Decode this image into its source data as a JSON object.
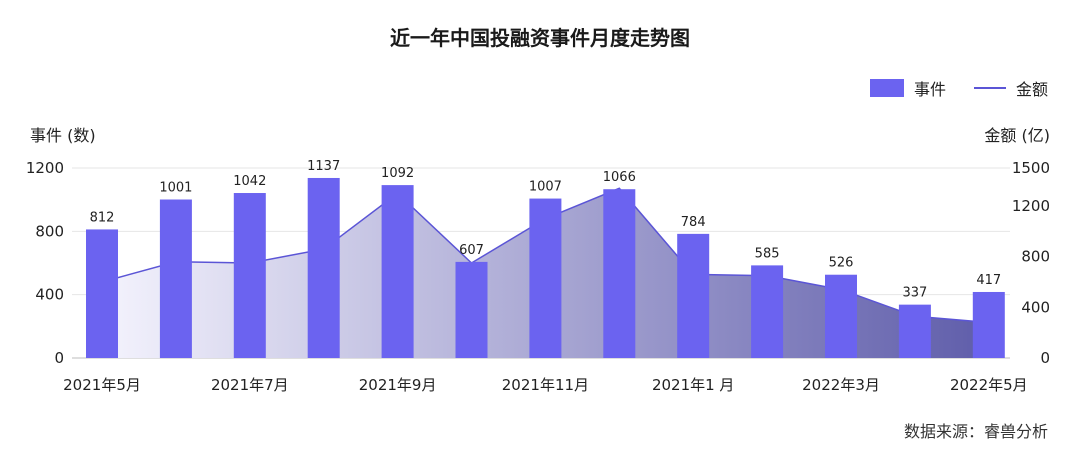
{
  "chart_data": {
    "type": "bar",
    "title": "近一年中国投融资事件月度走势图",
    "left_axis_label": "事件 (数)",
    "right_axis_label": "金额 (亿)",
    "legend": [
      {
        "name": "事件",
        "kind": "bar"
      },
      {
        "name": "金额",
        "kind": "line"
      }
    ],
    "legend_position": "top-right",
    "source": "数据来源：睿兽分析",
    "x_tick_labels": [
      "2021年5月",
      "2021年7月",
      "2021年9月",
      "2021年11月",
      "2021年1 月",
      "2022年3月",
      "2022年5月"
    ],
    "x_tick_indices": [
      0,
      2,
      4,
      6,
      8,
      10,
      12
    ],
    "y_left_ticks": [
      0,
      400,
      800,
      1200
    ],
    "y_right_ticks": [
      0,
      400,
      800,
      1200,
      1500
    ],
    "y_left_lim": [
      0,
      1200
    ],
    "y_right_lim": [
      0,
      1500
    ],
    "colors": {
      "bar": "#6b63f0",
      "line": "#5b55d6",
      "area_start": "#f4f3fd",
      "area_end": "#5f5daa"
    },
    "series": [
      {
        "name": "事件",
        "axis": "left",
        "type": "bar",
        "values": [
          812,
          1001,
          1042,
          1137,
          1092,
          607,
          1007,
          1066,
          784,
          585,
          526,
          337,
          417
        ]
      },
      {
        "name": "金额",
        "axis": "right",
        "type": "area-line",
        "values": [
          600,
          760,
          750,
          860,
          1300,
          750,
          1100,
          1340,
          660,
          650,
          540,
          330,
          280
        ]
      }
    ]
  }
}
